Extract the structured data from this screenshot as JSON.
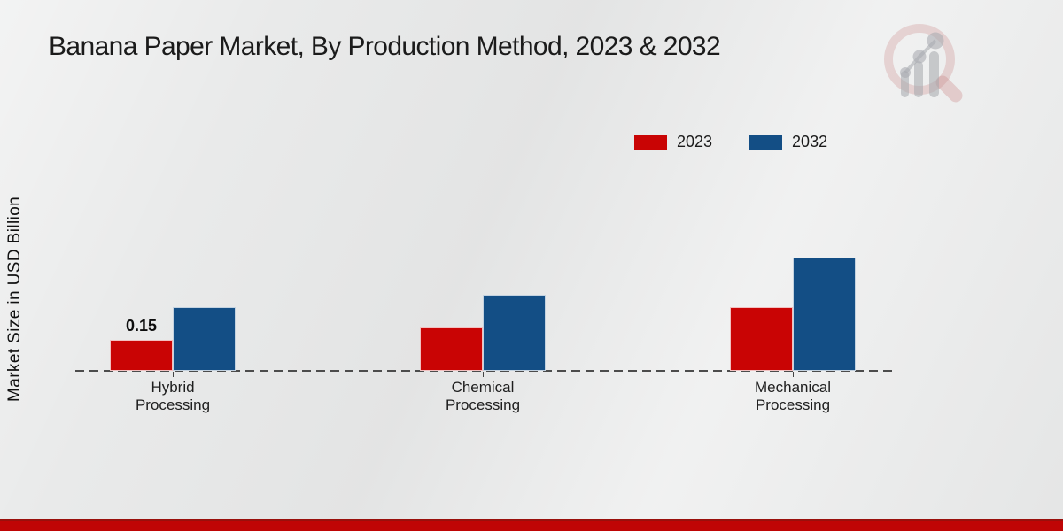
{
  "page": {
    "title": "Banana Paper Market, By Production Method, 2023 & 2032",
    "ylabel": "Market Size in USD Billion"
  },
  "legend": {
    "items": [
      {
        "label": "2023",
        "color": "#c90404"
      },
      {
        "label": "2032",
        "color": "#134e85"
      }
    ]
  },
  "chart_data": {
    "type": "bar",
    "title": "Banana Paper Market, By Production Method, 2023 & 2032",
    "xlabel": "",
    "ylabel": "Market Size in USD Billion",
    "categories": [
      "Hybrid Processing",
      "Chemical Processing",
      "Mechanical Processing"
    ],
    "series": [
      {
        "name": "2023",
        "color": "#c90404",
        "values": [
          0.15,
          0.21,
          0.31
        ]
      },
      {
        "name": "2032",
        "color": "#134e85",
        "values": [
          0.31,
          0.37,
          0.55
        ]
      }
    ],
    "annotations": [
      {
        "series": "2023",
        "category_index": 0,
        "text": "0.15"
      }
    ],
    "ylim": [
      0,
      1.2
    ],
    "grid": false,
    "legend_position": "upper-right",
    "baseline_style": "dashed",
    "y_axis_ticks_visible": false
  },
  "footer": {
    "band_color": "#bf0505"
  },
  "logo": {
    "name": "market-research-magnifier-logo"
  }
}
